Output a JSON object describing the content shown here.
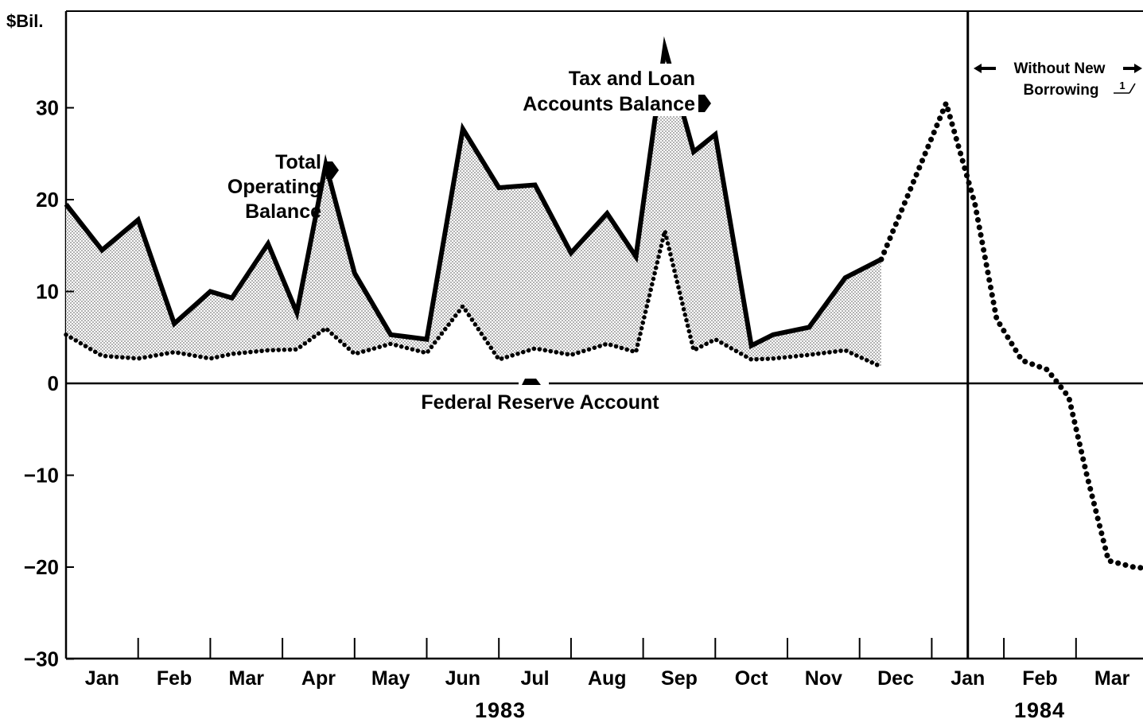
{
  "chart_data": {
    "type": "area",
    "ylabel": "$Bil.",
    "ylim": [
      -30,
      40
    ],
    "yticks": [
      30,
      20,
      10,
      0,
      -10,
      -20,
      -30
    ],
    "yticks_display": [
      "30",
      "20",
      "10",
      "0",
      "−10",
      "−20",
      "−30"
    ],
    "month_labels": [
      "Jan",
      "Feb",
      "Mar",
      "Apr",
      "May",
      "Jun",
      "Jul",
      "Aug",
      "Sep",
      "Oct",
      "Nov",
      "Dec",
      "Jan",
      "Feb",
      "Mar"
    ],
    "year_labels": [
      "1983",
      "1984"
    ],
    "x_unit": "months from start of Jan 1983",
    "series": [
      {
        "name": "Total Operating Balance",
        "style": "solid",
        "x": [
          0,
          0.5,
          1.0,
          1.5,
          2.0,
          2.3,
          2.8,
          3.2,
          3.6,
          4.0,
          4.5,
          5.0,
          5.5,
          6.0,
          6.5,
          7.0,
          7.5,
          7.9,
          8.3,
          8.7,
          9.0,
          9.5,
          9.8,
          10.3,
          10.8,
          11.3,
          11.6,
          12.0
        ],
        "values": [
          19.5,
          14.5,
          17.8,
          6.5,
          10,
          9.3,
          15.2,
          7.7,
          23.8,
          12,
          5.3,
          4.8,
          27.7,
          21.3,
          21.6,
          14.2,
          18.5,
          13.8,
          36.5,
          25.2,
          27.1,
          4.1,
          5.3,
          6.1,
          11.5,
          13.5,
          0,
          0
        ]
      },
      {
        "name": "Federal Reserve Account",
        "style": "dotted",
        "x": [
          0,
          0.5,
          1.0,
          1.5,
          2.0,
          2.3,
          2.8,
          3.2,
          3.6,
          4.0,
          4.5,
          5.0,
          5.5,
          6.0,
          6.5,
          7.0,
          7.5,
          7.9,
          8.3,
          8.7,
          9.0,
          9.5,
          9.8,
          10.3,
          10.8,
          11.3
        ],
        "values": [
          5.3,
          3.0,
          2.7,
          3.4,
          2.7,
          3.2,
          3.6,
          3.7,
          6.0,
          3.2,
          4.3,
          3.3,
          8.4,
          2.6,
          3.8,
          3.1,
          4.3,
          3.4,
          16.6,
          3.6,
          4.8,
          2.6,
          2.7,
          3.1,
          3.6,
          1.8
        ]
      },
      {
        "name": "Without New Borrowing",
        "style": "dotted",
        "x": [
          11.3,
          11.75,
          12.2,
          12.6,
          12.9,
          13.25,
          13.6,
          13.9,
          14.15,
          14.45,
          14.8,
          15.2
        ],
        "values": [
          13.5,
          22,
          30.5,
          19.5,
          7,
          2.5,
          1.5,
          -1.5,
          -10,
          -19.3,
          -20,
          -20.3
        ]
      }
    ],
    "annotations": {
      "total_operating_balance": [
        "Total",
        "Operating",
        "Balance"
      ],
      "tax_and_loan": [
        "Tax and Loan",
        "Accounts Balance"
      ],
      "federal_reserve": "Federal Reserve Account",
      "without_new_borrowing": [
        "Without New",
        "Borrowing"
      ],
      "footnote_mark": "1"
    },
    "grid": false,
    "legend": "none"
  }
}
